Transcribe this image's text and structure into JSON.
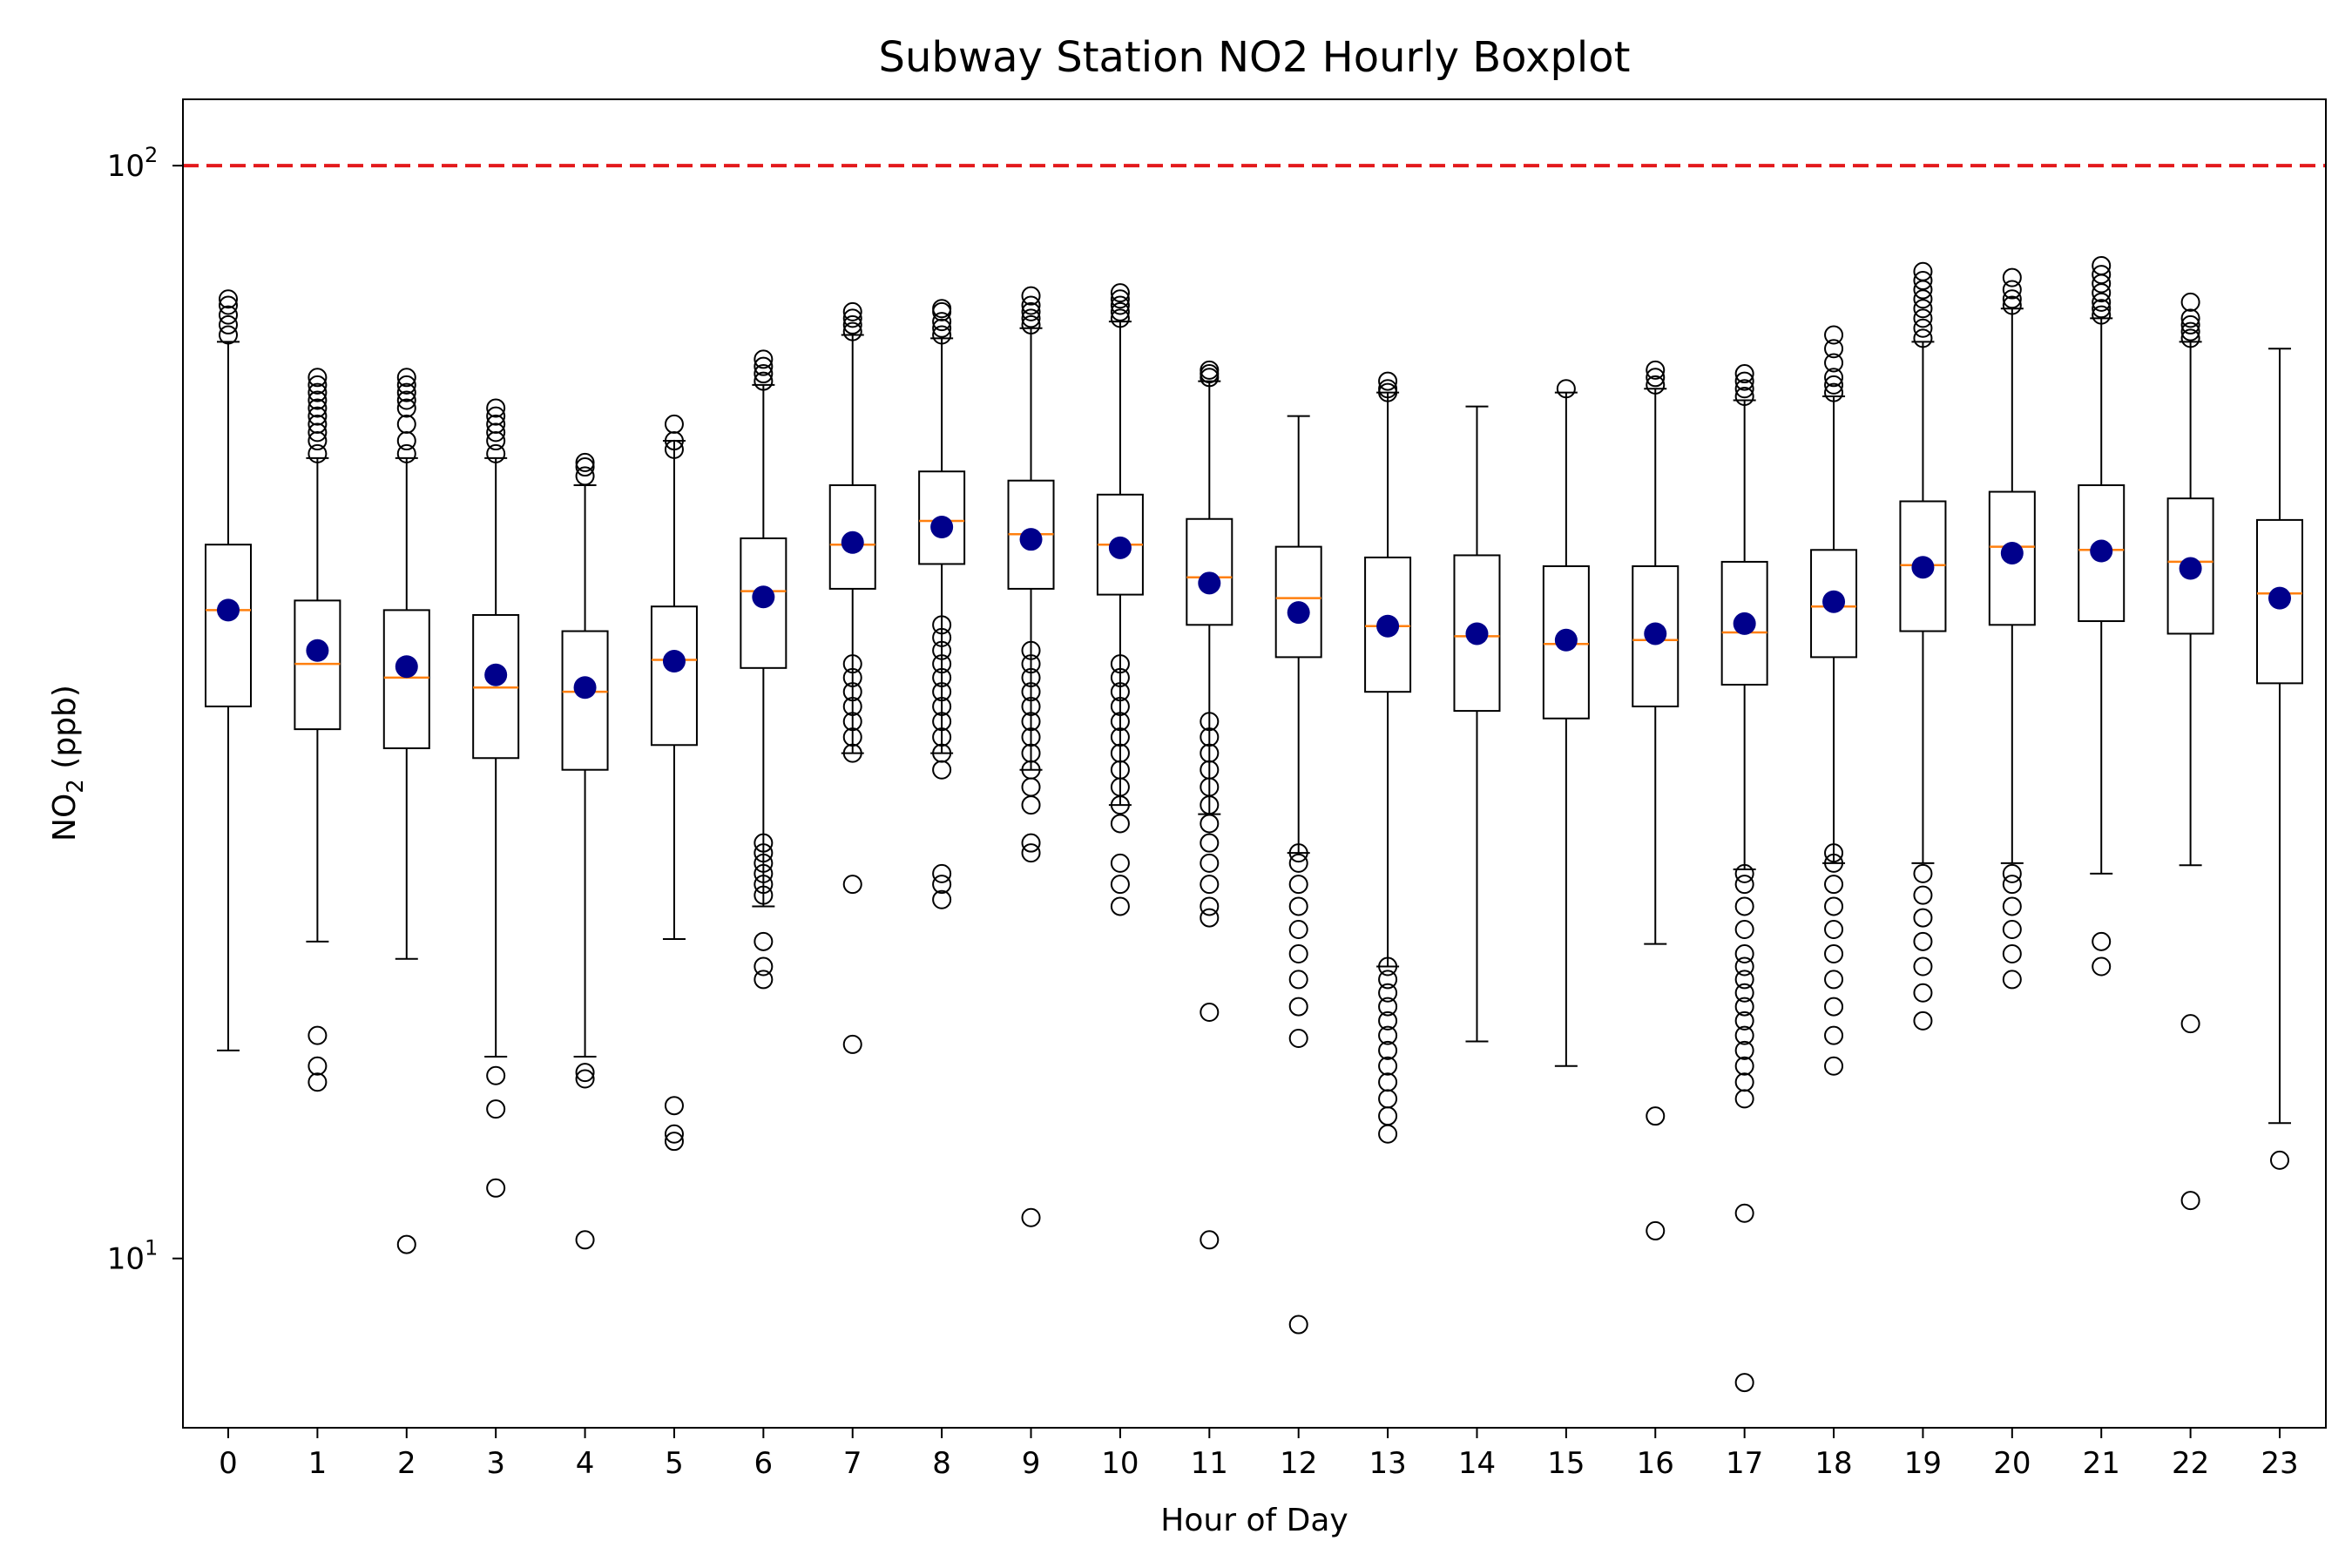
{
  "chart_data": {
    "type": "boxplot",
    "title": "Subway Station NO2 Hourly Boxplot",
    "xlabel": "Hour of Day",
    "ylabel": "NO",
    "ylabel_sub": "2",
    "ylabel_unit": " (ppb)",
    "yscale": "log",
    "ylim": [
      7,
      115
    ],
    "yticks": [
      {
        "value": 10,
        "base": "10",
        "exp": "1"
      },
      {
        "value": 100,
        "base": "10",
        "exp": "2"
      }
    ],
    "reference_line": {
      "value": 100,
      "color": "#e31a1c",
      "style": "dashed"
    },
    "colors": {
      "box": "#000000",
      "median": "#ff7f0e",
      "mean": "#00008b",
      "flier": "#000000"
    },
    "categories": [
      "0",
      "1",
      "2",
      "3",
      "4",
      "5",
      "6",
      "7",
      "8",
      "9",
      "10",
      "11",
      "12",
      "13",
      "14",
      "15",
      "16",
      "17",
      "18",
      "19",
      "20",
      "21",
      "22",
      "23"
    ],
    "boxes": [
      {
        "hour": "0",
        "whislo": 15.5,
        "q1": 32.0,
        "median": 39.2,
        "q3": 45.0,
        "whishi": 69.0,
        "mean": 39.2,
        "fliers": [
          70,
          71.5,
          73,
          74.5,
          75.5
        ]
      },
      {
        "hour": "1",
        "whislo": 19.5,
        "q1": 30.5,
        "median": 35.0,
        "q3": 40.0,
        "whishi": 54.0,
        "mean": 36.0,
        "fliers": [
          54.5,
          56,
          57,
          58,
          59,
          60,
          61,
          62,
          63,
          64,
          14.5,
          15.0,
          16.0
        ]
      },
      {
        "hour": "2",
        "whislo": 18.8,
        "q1": 29.3,
        "median": 34.0,
        "q3": 39.2,
        "whishi": 54.0,
        "mean": 34.8,
        "fliers": [
          54.5,
          56,
          58,
          60,
          61,
          62,
          63,
          64,
          10.3
        ]
      },
      {
        "hour": "3",
        "whislo": 15.3,
        "q1": 28.7,
        "median": 33.3,
        "q3": 38.8,
        "whishi": 54.0,
        "mean": 34.2,
        "fliers": [
          54.5,
          56,
          57,
          58,
          59,
          60,
          14.7,
          13.7,
          11.6
        ]
      },
      {
        "hour": "4",
        "whislo": 15.3,
        "q1": 28.0,
        "median": 33.0,
        "q3": 37.5,
        "whishi": 51.0,
        "mean": 33.3,
        "fliers": [
          52,
          53,
          53.5,
          14.8,
          14.6,
          10.4
        ]
      },
      {
        "hour": "5",
        "whislo": 19.6,
        "q1": 29.5,
        "median": 35.3,
        "q3": 39.5,
        "whishi": 56.0,
        "mean": 35.2,
        "fliers": [
          55,
          56,
          58,
          13.8,
          13.0,
          12.8
        ]
      },
      {
        "hour": "6",
        "whislo": 21.0,
        "q1": 34.7,
        "median": 40.8,
        "q3": 45.6,
        "whishi": 63.0,
        "mean": 40.3,
        "fliers": [
          63.5,
          64.5,
          65.5,
          66.5,
          21.5,
          22,
          22.5,
          23,
          23.5,
          24,
          19.5,
          18.5,
          18.0
        ]
      },
      {
        "hour": "7",
        "whislo": 29.0,
        "q1": 41.0,
        "median": 45.0,
        "q3": 51.0,
        "whishi": 70.0,
        "mean": 45.2,
        "fliers": [
          70.5,
          71.5,
          72.5,
          73.5,
          29,
          30,
          31,
          32,
          33,
          34,
          35,
          22.0,
          15.7
        ]
      },
      {
        "hour": "8",
        "whislo": 29.0,
        "q1": 43.2,
        "median": 47.3,
        "q3": 52.5,
        "whishi": 69.5,
        "mean": 46.7,
        "fliers": [
          70,
          71,
          72,
          73.5,
          74,
          28,
          29,
          30,
          31,
          32,
          33,
          34,
          35,
          36,
          37,
          38,
          22.5,
          22.0,
          21.3
        ]
      },
      {
        "hour": "9",
        "whislo": 28.0,
        "q1": 41.0,
        "median": 46.0,
        "q3": 51.5,
        "whishi": 71.0,
        "mean": 45.5,
        "fliers": [
          71.5,
          72.5,
          73.5,
          74.5,
          76,
          26,
          27,
          28,
          29,
          30,
          31,
          32,
          33,
          34,
          35,
          36,
          24,
          23.5,
          10.9
        ]
      },
      {
        "hour": "10",
        "whislo": 26.0,
        "q1": 40.5,
        "median": 45.0,
        "q3": 50.0,
        "whishi": 72.0,
        "mean": 44.7,
        "fliers": [
          72.5,
          73.5,
          74.5,
          75.5,
          76.5,
          25,
          26,
          27,
          28,
          29,
          30,
          31,
          32,
          33,
          34,
          35,
          23,
          22,
          21
        ]
      },
      {
        "hour": "11",
        "whislo": 25.5,
        "q1": 38.0,
        "median": 42.0,
        "q3": 47.5,
        "whishi": 63.5,
        "mean": 41.5,
        "fliers": [
          64.5,
          65,
          64,
          20.5,
          21,
          22,
          23,
          24,
          25,
          26,
          27,
          28,
          29,
          30,
          31,
          16.8,
          10.4
        ]
      },
      {
        "hour": "12",
        "whislo": 23.5,
        "q1": 35.5,
        "median": 40.2,
        "q3": 44.8,
        "whishi": 59.0,
        "mean": 39.0,
        "fliers": [
          17,
          18,
          19,
          20,
          21,
          22,
          23,
          23.5,
          15.9,
          8.7
        ]
      },
      {
        "hour": "13",
        "whislo": 18.5,
        "q1": 33.0,
        "median": 37.9,
        "q3": 43.8,
        "whishi": 62.0,
        "mean": 37.9,
        "fliers": [
          62.5,
          63.5,
          62,
          13.5,
          14,
          14.5,
          15,
          15.5,
          16,
          16.5,
          17,
          17.5,
          18,
          18.5,
          13.0
        ]
      },
      {
        "hour": "14",
        "whislo": 15.8,
        "q1": 31.7,
        "median": 37.1,
        "q3": 44.0,
        "whishi": 60.2,
        "mean": 37.3,
        "fliers": []
      },
      {
        "hour": "15",
        "whislo": 15.0,
        "q1": 31.2,
        "median": 36.5,
        "q3": 43.0,
        "whishi": 62.0,
        "mean": 36.8,
        "fliers": [
          62.5
        ]
      },
      {
        "hour": "16",
        "whislo": 19.4,
        "q1": 32.0,
        "median": 36.8,
        "q3": 43.0,
        "whishi": 62.5,
        "mean": 37.3,
        "fliers": [
          63,
          64,
          65,
          13.5,
          10.6
        ]
      },
      {
        "hour": "17",
        "whislo": 22.7,
        "q1": 33.5,
        "median": 37.4,
        "q3": 43.4,
        "whishi": 61.0,
        "mean": 38.1,
        "fliers": [
          61.5,
          62.5,
          63.5,
          64.5,
          14,
          14.5,
          15,
          15.5,
          16,
          16.5,
          17,
          17.5,
          18,
          18.5,
          19,
          20,
          21,
          22,
          22.5,
          11.0,
          7.7
        ]
      },
      {
        "hour": "18",
        "whislo": 23.0,
        "q1": 35.5,
        "median": 39.5,
        "q3": 44.5,
        "whishi": 61.5,
        "mean": 39.9,
        "fliers": [
          62,
          63,
          64,
          66,
          68,
          70,
          15,
          16,
          17,
          18,
          19,
          20,
          21,
          22,
          23,
          23.5
        ]
      },
      {
        "hour": "19",
        "whislo": 23.0,
        "q1": 37.5,
        "median": 43.1,
        "q3": 49.3,
        "whishi": 69.0,
        "mean": 42.9,
        "fliers": [
          69.5,
          71,
          72.5,
          74,
          75.5,
          77,
          78.5,
          80,
          16.5,
          17.5,
          18.5,
          19.5,
          20.5,
          21.5,
          22.5
        ]
      },
      {
        "hour": "20",
        "whislo": 23.0,
        "q1": 38.0,
        "median": 44.8,
        "q3": 50.3,
        "whishi": 74.0,
        "mean": 44.2,
        "fliers": [
          74.5,
          75.5,
          77,
          79,
          18,
          19,
          20,
          21,
          22,
          22.5
        ]
      },
      {
        "hour": "21",
        "whislo": 22.5,
        "q1": 38.3,
        "median": 44.5,
        "q3": 51.0,
        "whishi": 72.5,
        "mean": 44.4,
        "fliers": [
          73,
          74,
          75,
          76.5,
          78,
          79.5,
          81,
          18.5,
          19.5
        ]
      },
      {
        "hour": "22",
        "whislo": 22.9,
        "q1": 37.3,
        "median": 43.4,
        "q3": 49.6,
        "whishi": 69.0,
        "mean": 42.8,
        "fliers": [
          69.5,
          70.5,
          71.5,
          72.5,
          75,
          16.4,
          11.3
        ]
      },
      {
        "hour": "23",
        "whislo": 13.3,
        "q1": 33.6,
        "median": 40.6,
        "q3": 47.4,
        "whishi": 68.0,
        "mean": 40.2,
        "fliers": [
          12.3
        ]
      }
    ]
  }
}
